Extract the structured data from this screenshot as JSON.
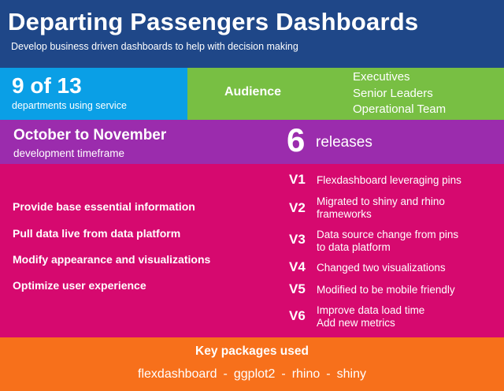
{
  "header": {
    "title": "Departing Passengers Dashboards",
    "subtitle": "Develop business driven dashboards to help with decision making"
  },
  "departments": {
    "value": "9 of 13",
    "label": "departments using service"
  },
  "audience": {
    "label": "Audience",
    "items": [
      "Executives",
      "Senior Leaders",
      "Operational Team"
    ]
  },
  "timeframe": {
    "value": "October to November",
    "label": "development timeframe"
  },
  "releases": {
    "count": "6",
    "label": "releases"
  },
  "goals": [
    "Provide base essential information",
    "Pull data live from data platform",
    "Modify appearance and visualizations",
    "Optimize user experience"
  ],
  "versions": [
    {
      "version": "V1",
      "lines": [
        "Flexdashboard leveraging pins"
      ]
    },
    {
      "version": "V2",
      "lines": [
        "Migrated to shiny and rhino",
        "frameworks"
      ]
    },
    {
      "version": "V3",
      "lines": [
        "Data source change from pins",
        "to data platform"
      ]
    },
    {
      "version": "V4",
      "lines": [
        "Changed two visualizations"
      ]
    },
    {
      "version": "V5",
      "lines": [
        "Modified to be mobile friendly"
      ]
    },
    {
      "version": "V6",
      "lines": [
        "Improve data load time",
        "Add new metrics"
      ]
    }
  ],
  "packages": {
    "title": "Key packages used",
    "separator": "-",
    "items": [
      "flexdashboard",
      "ggplot2",
      "rhino",
      "shiny"
    ]
  },
  "colors": {
    "header": "#1f4788",
    "departments": "#0a9fe6",
    "audience": "#78bf43",
    "timeframe": "#9b2cad",
    "versions": "#d6096f",
    "footer": "#f7701b"
  }
}
